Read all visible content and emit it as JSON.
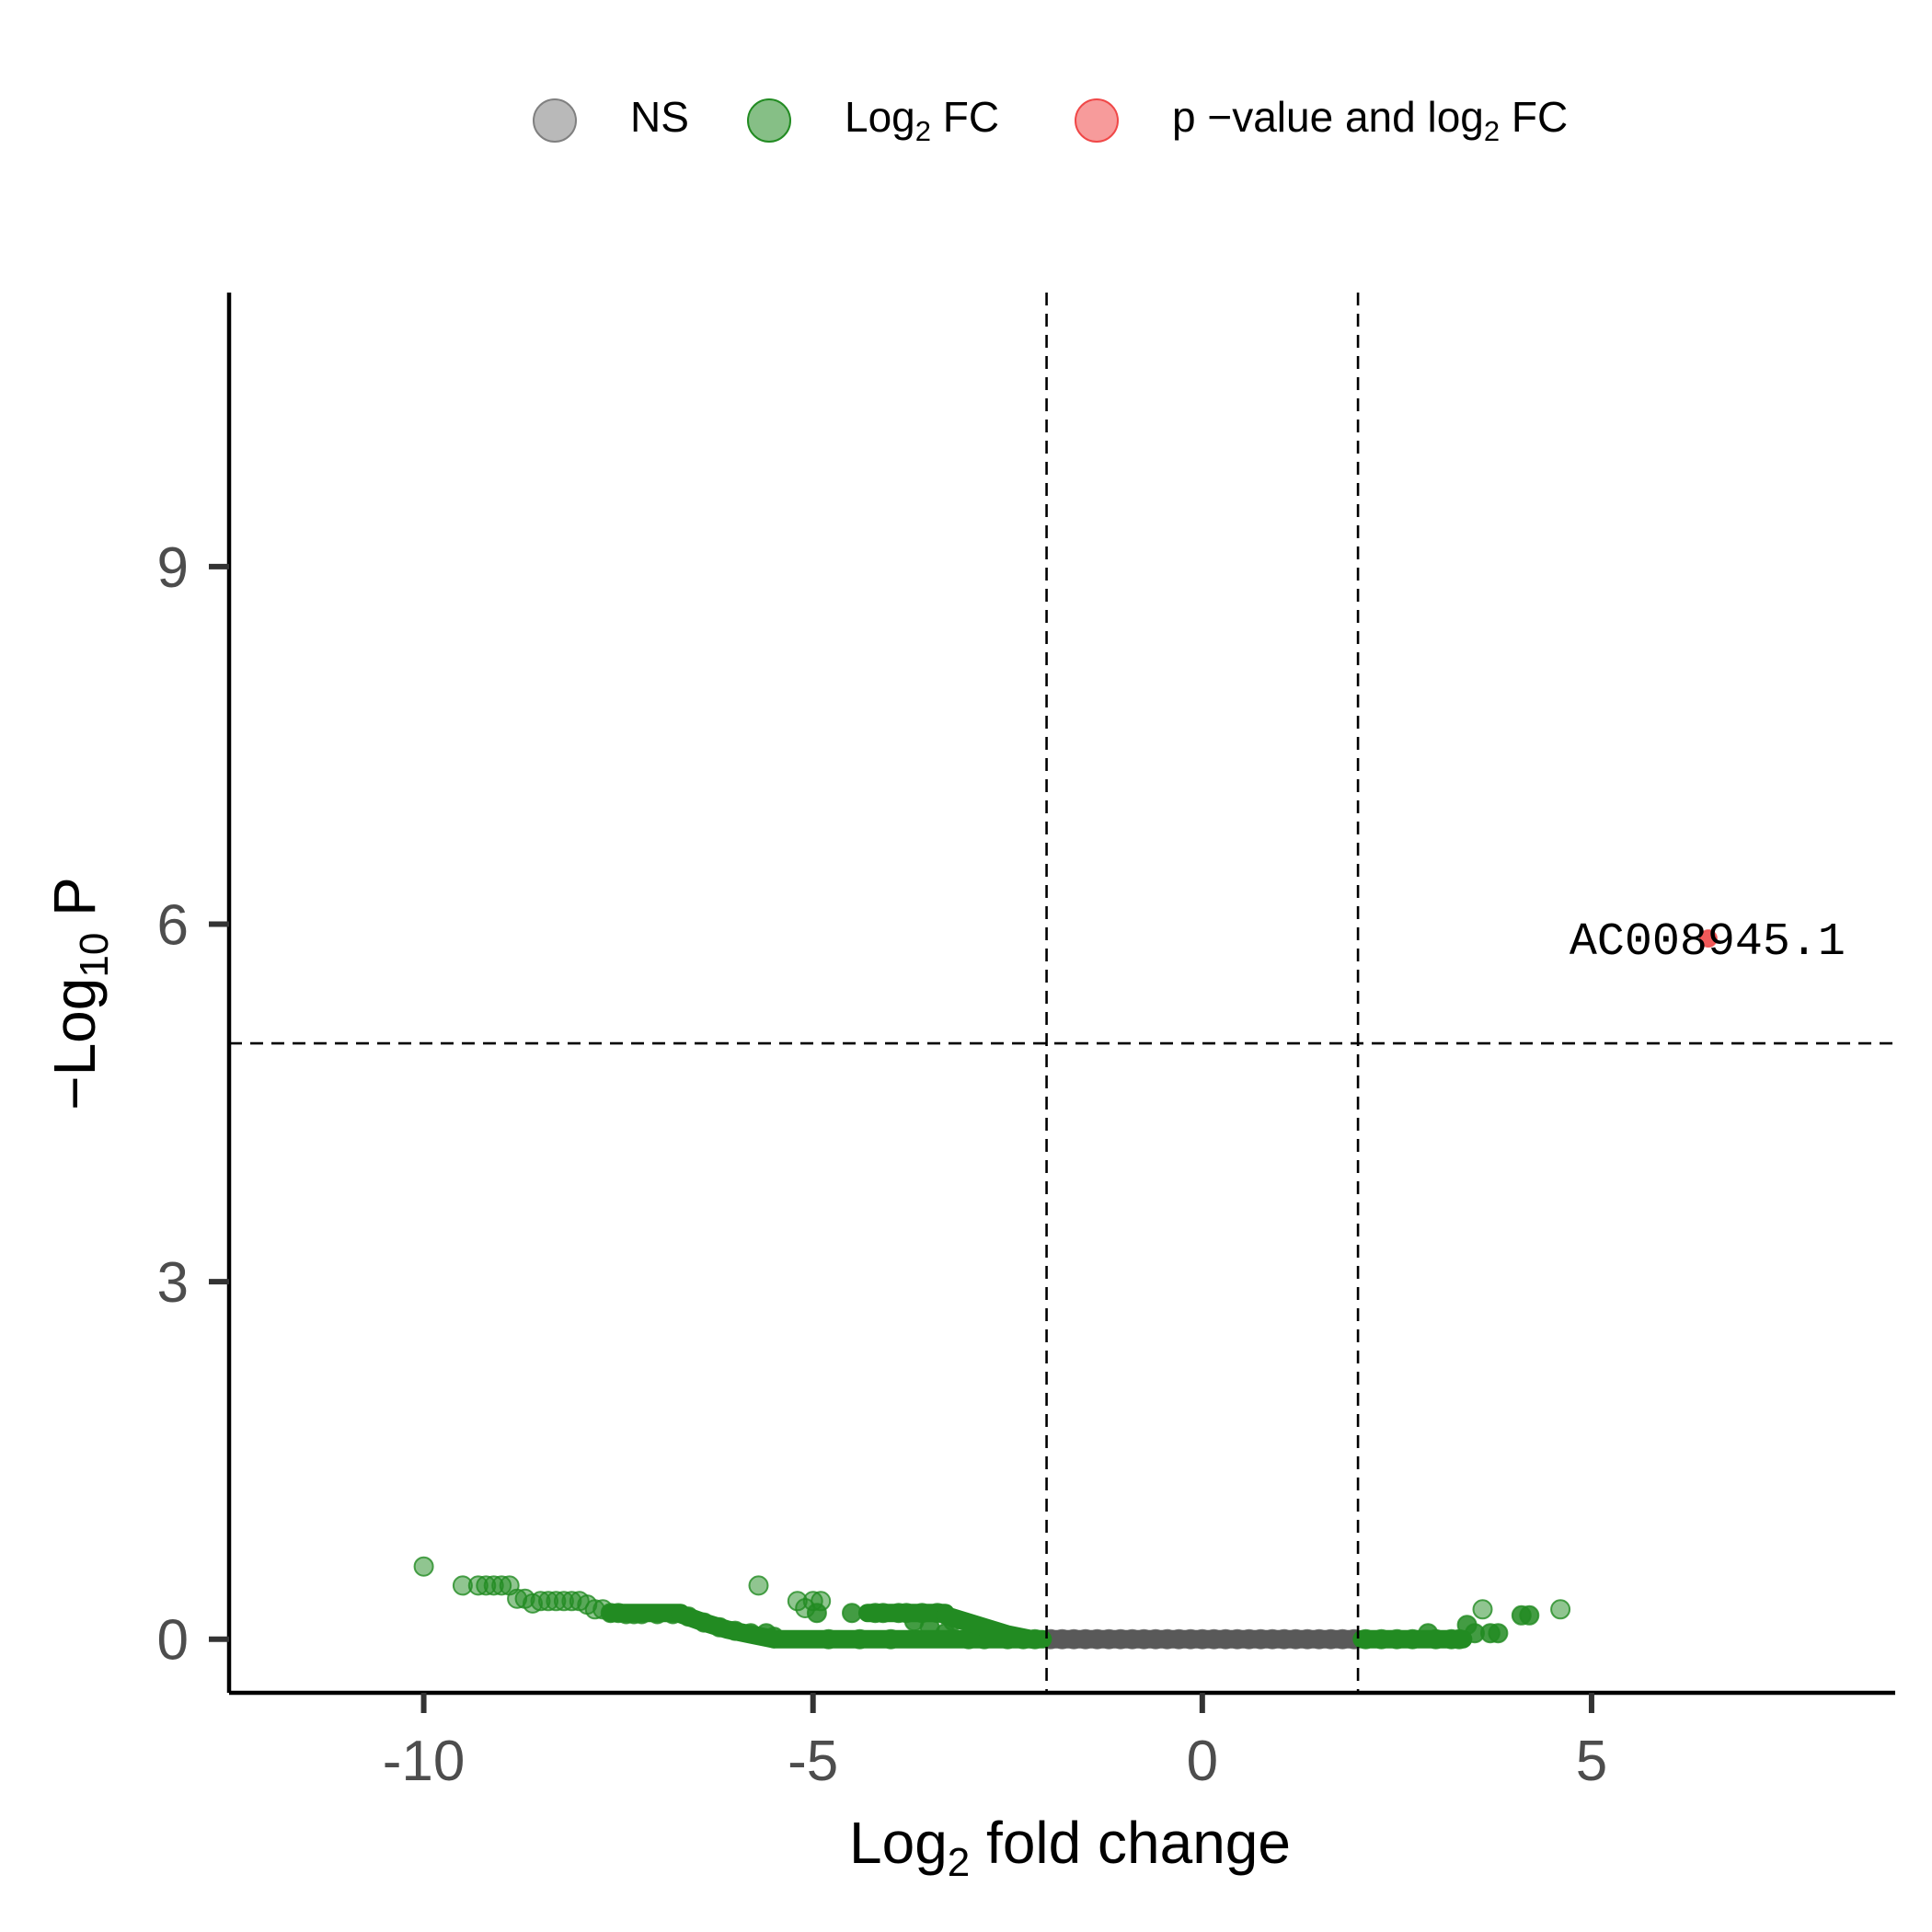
{
  "chart_data": {
    "type": "scatter",
    "title": "",
    "xlabel": {
      "pre": "Log",
      "sub": "2",
      "post": " fold change"
    },
    "ylabel": {
      "pre": "−Log",
      "sub": "10",
      "post": " P"
    },
    "xlim": [
      -12.5,
      8.9
    ],
    "ylim": [
      -0.45,
      11.3
    ],
    "x_ticks": [
      -10,
      -5,
      0,
      5
    ],
    "x_tick_labels": [
      "-10",
      "-5",
      "0",
      "5"
    ],
    "y_ticks": [
      0,
      3,
      6,
      9
    ],
    "y_tick_labels": [
      "0",
      "3",
      "6",
      "9"
    ],
    "grid": false,
    "legend_position": "top",
    "cutoffs": {
      "log2fc": [
        -2,
        2
      ],
      "neg_log10_p": 5
    },
    "legend": [
      {
        "key": "ns",
        "pre": "NS",
        "sub": "",
        "post": "",
        "color": "#808080"
      },
      {
        "key": "fc",
        "pre": "Log",
        "sub": "2",
        "post": " FC",
        "color": "#228B22"
      },
      {
        "key": "both",
        "pre": "p −value and log",
        "sub": "2",
        "post": " FC",
        "color": "#F04848"
      }
    ],
    "series": [
      {
        "key": "ns",
        "color": "#595959",
        "points": [
          [
            -1.95,
            0.0
          ],
          [
            -1.8,
            0.0
          ],
          [
            -1.65,
            0.0
          ],
          [
            -1.5,
            0.0
          ],
          [
            -1.35,
            0.0
          ],
          [
            -1.2,
            0.0
          ],
          [
            -1.05,
            0.0
          ],
          [
            -0.9,
            0.0
          ],
          [
            -0.75,
            0.0
          ],
          [
            -0.6,
            0.0
          ],
          [
            -0.45,
            0.0
          ],
          [
            -0.3,
            0.0
          ],
          [
            -0.15,
            0.0
          ],
          [
            0.0,
            0.0
          ],
          [
            0.15,
            0.0
          ],
          [
            0.3,
            0.0
          ],
          [
            0.45,
            0.0
          ],
          [
            0.6,
            0.0
          ],
          [
            0.75,
            0.0
          ],
          [
            0.9,
            0.0
          ],
          [
            1.05,
            0.0
          ],
          [
            1.2,
            0.0
          ],
          [
            1.35,
            0.0
          ],
          [
            1.5,
            0.0
          ],
          [
            1.65,
            0.0
          ],
          [
            1.8,
            0.0
          ],
          [
            1.95,
            0.0
          ]
        ]
      },
      {
        "key": "fc",
        "color": "#228B22",
        "points": [
          [
            -10.0,
            0.61
          ],
          [
            -9.5,
            0.45
          ],
          [
            -9.3,
            0.45
          ],
          [
            -9.2,
            0.45
          ],
          [
            -9.1,
            0.45
          ],
          [
            -9.0,
            0.45
          ],
          [
            -8.9,
            0.45
          ],
          [
            -8.8,
            0.34
          ],
          [
            -8.7,
            0.34
          ],
          [
            -8.6,
            0.3
          ],
          [
            -8.5,
            0.32
          ],
          [
            -8.4,
            0.32
          ],
          [
            -8.3,
            0.32
          ],
          [
            -8.2,
            0.32
          ],
          [
            -8.1,
            0.32
          ],
          [
            -8.0,
            0.32
          ],
          [
            -7.9,
            0.29
          ],
          [
            -7.8,
            0.25
          ],
          [
            -7.7,
            0.25
          ],
          [
            -7.6,
            0.22
          ],
          [
            -7.5,
            0.22
          ],
          [
            -7.4,
            0.21
          ],
          [
            -7.3,
            0.21
          ],
          [
            -7.2,
            0.21
          ],
          [
            -7.0,
            0.21
          ],
          [
            -6.8,
            0.21
          ],
          [
            -6.6,
            0.19
          ],
          [
            -6.4,
            0.14
          ],
          [
            -6.2,
            0.1
          ],
          [
            -6.0,
            0.07
          ],
          [
            -5.8,
            0.05
          ],
          [
            -5.7,
            0.45
          ],
          [
            -5.6,
            0.05
          ],
          [
            -5.5,
            0.02
          ],
          [
            -5.2,
            0.32
          ],
          [
            -5.1,
            0.26
          ],
          [
            -5.0,
            0.32
          ],
          [
            -4.95,
            0.22
          ],
          [
            -4.9,
            0.32
          ],
          [
            -4.8,
            0.0
          ],
          [
            -4.5,
            0.22
          ],
          [
            -4.4,
            0.0
          ],
          [
            -4.2,
            0.22
          ],
          [
            -4.1,
            0.22
          ],
          [
            -4.0,
            0.0
          ],
          [
            -3.9,
            0.22
          ],
          [
            -3.8,
            0.22
          ],
          [
            -3.7,
            0.15
          ],
          [
            -3.6,
            0.22
          ],
          [
            -3.5,
            0.1
          ],
          [
            -3.4,
            0.22
          ],
          [
            -3.3,
            0.05
          ],
          [
            -3.2,
            0.15
          ],
          [
            -3.0,
            0.0
          ],
          [
            -2.9,
            0.1
          ],
          [
            -2.8,
            0.0
          ],
          [
            -2.6,
            0.05
          ],
          [
            -2.5,
            0.0
          ],
          [
            -2.3,
            0.0
          ],
          [
            -2.15,
            0.0
          ],
          [
            2.1,
            0.0
          ],
          [
            2.3,
            0.0
          ],
          [
            2.5,
            0.0
          ],
          [
            2.7,
            0.0
          ],
          [
            2.9,
            0.05
          ],
          [
            3.0,
            0.0
          ],
          [
            3.2,
            0.0
          ],
          [
            3.3,
            0.0
          ],
          [
            3.4,
            0.12
          ],
          [
            3.5,
            0.05
          ],
          [
            3.6,
            0.25
          ],
          [
            3.7,
            0.05
          ],
          [
            3.8,
            0.05
          ],
          [
            4.1,
            0.2
          ],
          [
            4.2,
            0.2
          ],
          [
            4.6,
            0.25
          ]
        ]
      },
      {
        "key": "both",
        "color": "#F04848",
        "points": [
          [
            6.5,
            5.88
          ]
        ]
      }
    ],
    "annotations": [
      {
        "x": 6.5,
        "y": 5.88,
        "text": "AC008945.1"
      }
    ]
  }
}
